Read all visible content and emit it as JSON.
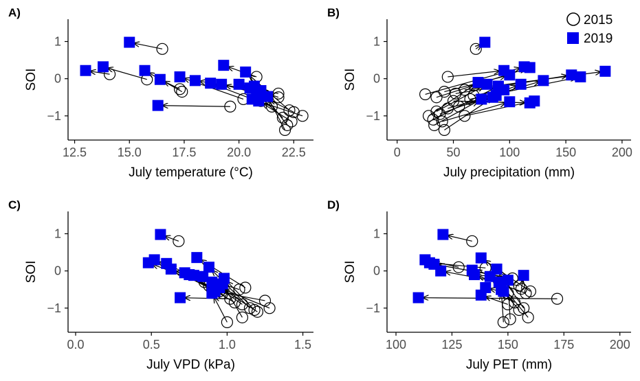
{
  "legend": {
    "position": "top-right",
    "entries": [
      {
        "label": "2015",
        "marker": "open-circle",
        "color": "#000000"
      },
      {
        "label": "2019",
        "marker": "filled-square",
        "color": "#0000ee"
      }
    ]
  },
  "colors": {
    "square": "#0000ee",
    "circle_stroke": "#000000",
    "arrow": "#000000",
    "axis": "#000000",
    "tick_text": "#4d4d4d"
  },
  "chart_data": [
    {
      "type": "scatter",
      "panel_label": "A)",
      "xlabel": "July temperature (°C)",
      "ylabel": "SOI",
      "xlim": [
        12.2,
        23.4
      ],
      "ylim": [
        -1.65,
        1.6
      ],
      "xticks": [
        12.5,
        15.0,
        17.5,
        20.0,
        22.5
      ],
      "xtick_labels": [
        "12.5",
        "15.0",
        "17.5",
        "20.0",
        "22.5"
      ],
      "yticks": [
        1,
        0,
        -1
      ],
      "ytick_labels": [
        "1",
        "0",
        "−1"
      ],
      "grid": false,
      "arrows": [
        {
          "x2015": 16.5,
          "y2015": 0.8,
          "x2019": 15.0,
          "y2019": 0.98
        },
        {
          "x2015": 14.1,
          "y2015": 0.12,
          "x2019": 13.0,
          "y2019": 0.22
        },
        {
          "x2015": 15.8,
          "y2015": -0.02,
          "x2019": 13.8,
          "y2019": 0.32
        },
        {
          "x2015": 17.4,
          "y2015": -0.35,
          "x2019": 15.7,
          "y2019": 0.22
        },
        {
          "x2015": 17.3,
          "y2015": -0.28,
          "x2019": 16.4,
          "y2019": -0.02
        },
        {
          "x2015": 19.6,
          "y2015": -0.75,
          "x2019": 16.3,
          "y2019": -0.72
        },
        {
          "x2015": 20.2,
          "y2015": -0.55,
          "x2019": 17.3,
          "y2019": 0.05
        },
        {
          "x2015": 21.8,
          "y2015": -0.4,
          "x2019": 18.0,
          "y2019": -0.05
        },
        {
          "x2015": 21.5,
          "y2015": -0.75,
          "x2019": 18.7,
          "y2019": -0.12
        },
        {
          "x2015": 21.2,
          "y2015": -0.45,
          "x2019": 19.2,
          "y2019": -0.15
        },
        {
          "x2015": 20.8,
          "y2015": 0.05,
          "x2019": 19.3,
          "y2019": 0.36
        },
        {
          "x2015": 22.3,
          "y2015": -0.85,
          "x2019": 20.3,
          "y2019": 0.18
        },
        {
          "x2015": 21.8,
          "y2015": -0.5,
          "x2019": 20.0,
          "y2019": -0.15
        },
        {
          "x2015": 22.0,
          "y2015": -1.05,
          "x2019": 20.5,
          "y2019": -0.25
        },
        {
          "x2015": 22.5,
          "y2015": -0.9,
          "x2019": 20.8,
          "y2019": -0.4
        },
        {
          "x2015": 22.9,
          "y2015": -1.0,
          "x2019": 20.6,
          "y2019": -0.55
        },
        {
          "x2015": 22.2,
          "y2015": -1.25,
          "x2019": 21.0,
          "y2019": -0.32
        },
        {
          "x2015": 22.1,
          "y2015": -1.38,
          "x2019": 21.3,
          "y2019": -0.48
        },
        {
          "x2015": 22.4,
          "y2015": -1.15,
          "x2019": 20.9,
          "y2019": -0.6
        },
        {
          "x2015": 21.0,
          "y2015": -0.6,
          "x2019": 20.7,
          "y2019": -0.2
        }
      ]
    },
    {
      "type": "scatter",
      "panel_label": "B)",
      "xlabel": "July precipitation (mm)",
      "ylabel": "SOI",
      "xlim": [
        -9,
        208
      ],
      "ylim": [
        -1.65,
        1.6
      ],
      "xticks": [
        0,
        50,
        100,
        150,
        200
      ],
      "xtick_labels": [
        "0",
        "50",
        "100",
        "150",
        "200"
      ],
      "yticks": [
        1,
        0,
        -1
      ],
      "ytick_labels": [
        "1",
        "0",
        "−1"
      ],
      "grid": false,
      "arrows": [
        {
          "x2015": 70,
          "y2015": 0.8,
          "x2019": 78,
          "y2019": 0.98
        },
        {
          "x2015": 45,
          "y2015": 0.05,
          "x2019": 95,
          "y2019": 0.22
        },
        {
          "x2015": 25,
          "y2015": -0.42,
          "x2019": 113,
          "y2019": 0.32
        },
        {
          "x2015": 35,
          "y2015": -0.5,
          "x2019": 118,
          "y2019": 0.3
        },
        {
          "x2015": 42,
          "y2015": -0.35,
          "x2019": 100,
          "y2019": 0.1
        },
        {
          "x2015": 52,
          "y2015": -0.4,
          "x2019": 155,
          "y2019": 0.1
        },
        {
          "x2015": 60,
          "y2015": -0.3,
          "x2019": 185,
          "y2019": 0.2
        },
        {
          "x2015": 65,
          "y2015": -0.55,
          "x2019": 163,
          "y2019": 0.05
        },
        {
          "x2015": 28,
          "y2015": -1.0,
          "x2019": 72,
          "y2019": -0.1
        },
        {
          "x2015": 35,
          "y2015": -0.88,
          "x2019": 80,
          "y2019": -0.15
        },
        {
          "x2015": 32,
          "y2015": -1.1,
          "x2019": 90,
          "y2019": -0.2
        },
        {
          "x2015": 38,
          "y2015": -0.95,
          "x2019": 110,
          "y2019": -0.15
        },
        {
          "x2015": 45,
          "y2015": -0.8,
          "x2019": 130,
          "y2019": -0.05
        },
        {
          "x2015": 33,
          "y2015": -1.25,
          "x2019": 75,
          "y2019": -0.55
        },
        {
          "x2015": 42,
          "y2015": -1.38,
          "x2019": 88,
          "y2019": -0.45
        },
        {
          "x2015": 55,
          "y2015": -0.75,
          "x2019": 85,
          "y2019": -0.5
        },
        {
          "x2015": 40,
          "y2015": -1.15,
          "x2019": 100,
          "y2019": -0.62
        },
        {
          "x2015": 50,
          "y2015": -0.6,
          "x2019": 118,
          "y2019": -0.65
        },
        {
          "x2015": 60,
          "y2015": -1.0,
          "x2019": 122,
          "y2019": -0.6
        },
        {
          "x2015": 68,
          "y2015": -0.45,
          "x2019": 95,
          "y2019": -0.3
        }
      ]
    },
    {
      "type": "scatter",
      "panel_label": "C)",
      "xlabel": "July VPD (kPa)",
      "ylabel": "SOI",
      "xlim": [
        -0.05,
        1.57
      ],
      "ylim": [
        -1.65,
        1.6
      ],
      "xticks": [
        0.0,
        0.5,
        1.0,
        1.5
      ],
      "xtick_labels": [
        "0.0",
        "0.5",
        "1.0",
        "1.5"
      ],
      "yticks": [
        1,
        0,
        -1
      ],
      "ytick_labels": [
        "1",
        "0",
        "−1"
      ],
      "grid": false,
      "arrows": [
        {
          "x2015": 0.68,
          "y2015": 0.8,
          "x2019": 0.56,
          "y2019": 0.98
        },
        {
          "x2015": 0.88,
          "y2015": -0.4,
          "x2019": 0.48,
          "y2019": 0.22
        },
        {
          "x2015": 0.9,
          "y2015": -0.5,
          "x2019": 0.52,
          "y2019": 0.3
        },
        {
          "x2015": 0.95,
          "y2015": -0.55,
          "x2019": 0.6,
          "y2019": 0.2
        },
        {
          "x2015": 0.97,
          "y2015": -0.6,
          "x2019": 0.63,
          "y2019": 0.05
        },
        {
          "x2015": 1.02,
          "y2015": -0.75,
          "x2019": 0.69,
          "y2019": -0.72
        },
        {
          "x2015": 1.05,
          "y2015": -0.85,
          "x2019": 0.72,
          "y2019": -0.05
        },
        {
          "x2015": 1.08,
          "y2015": -0.5,
          "x2019": 0.78,
          "y2019": -0.12
        },
        {
          "x2015": 1.12,
          "y2015": -0.45,
          "x2019": 0.8,
          "y2019": 0.36
        },
        {
          "x2015": 1.1,
          "y2015": -0.9,
          "x2019": 0.84,
          "y2019": -0.15
        },
        {
          "x2015": 1.15,
          "y2015": -1.0,
          "x2019": 0.88,
          "y2019": 0.1
        },
        {
          "x2015": 1.2,
          "y2015": -1.1,
          "x2019": 0.9,
          "y2019": -0.3
        },
        {
          "x2015": 1.25,
          "y2015": -0.8,
          "x2019": 0.92,
          "y2019": -0.55
        },
        {
          "x2015": 1.28,
          "y2015": -1.0,
          "x2019": 0.95,
          "y2019": -0.45
        },
        {
          "x2015": 1.0,
          "y2015": -1.38,
          "x2019": 0.9,
          "y2019": -0.6
        },
        {
          "x2015": 1.1,
          "y2015": -1.25,
          "x2019": 0.97,
          "y2019": -0.35
        },
        {
          "x2015": 1.18,
          "y2015": -1.05,
          "x2019": 0.98,
          "y2019": -0.2
        },
        {
          "x2015": 0.85,
          "y2015": -0.3,
          "x2019": 0.75,
          "y2019": -0.1
        }
      ]
    },
    {
      "type": "scatter",
      "panel_label": "D)",
      "xlabel": "July PET (mm)",
      "ylabel": "SOI",
      "xlim": [
        96,
        205
      ],
      "ylim": [
        -1.65,
        1.6
      ],
      "xticks": [
        100,
        125,
        150,
        175,
        200
      ],
      "xtick_labels": [
        "100",
        "125",
        "150",
        "175",
        "200"
      ],
      "yticks": [
        1,
        0,
        -1
      ],
      "ytick_labels": [
        "1",
        "0",
        "−1"
      ],
      "grid": false,
      "arrows": [
        {
          "x2015": 134,
          "y2015": 0.8,
          "x2019": 121,
          "y2019": 0.98
        },
        {
          "x2015": 128,
          "y2015": 0.1,
          "x2019": 113,
          "y2019": 0.3
        },
        {
          "x2015": 140,
          "y2015": 0.08,
          "x2019": 115,
          "y2019": 0.22
        },
        {
          "x2015": 152,
          "y2015": -0.2,
          "x2019": 117,
          "y2019": 0.18
        },
        {
          "x2015": 155,
          "y2015": -0.4,
          "x2019": 120,
          "y2019": 0.0
        },
        {
          "x2015": 172,
          "y2015": -0.75,
          "x2019": 110,
          "y2019": -0.72
        },
        {
          "x2015": 158,
          "y2015": -0.6,
          "x2019": 135,
          "y2019": -0.1
        },
        {
          "x2015": 160,
          "y2015": -0.55,
          "x2019": 138,
          "y2019": 0.35
        },
        {
          "x2015": 150,
          "y2015": -0.9,
          "x2019": 138,
          "y2019": -0.65
        },
        {
          "x2015": 155,
          "y2015": -1.05,
          "x2019": 142,
          "y2019": -0.15
        },
        {
          "x2015": 157,
          "y2015": -1.0,
          "x2019": 145,
          "y2019": 0.05
        },
        {
          "x2015": 159,
          "y2015": -1.25,
          "x2019": 146,
          "y2019": -0.3
        },
        {
          "x2015": 148,
          "y2015": -1.38,
          "x2019": 147,
          "y2019": -0.5
        },
        {
          "x2015": 151,
          "y2015": -1.3,
          "x2019": 150,
          "y2019": -0.25
        },
        {
          "x2015": 153,
          "y2015": -0.85,
          "x2019": 148,
          "y2019": -0.55
        },
        {
          "x2015": 156,
          "y2015": -0.48,
          "x2019": 157,
          "y2019": -0.12
        },
        {
          "x2015": 150,
          "y2015": -0.6,
          "x2019": 140,
          "y2019": -0.45
        },
        {
          "x2015": 146,
          "y2015": -0.15,
          "x2019": 134,
          "y2019": 0.02
        }
      ]
    }
  ]
}
